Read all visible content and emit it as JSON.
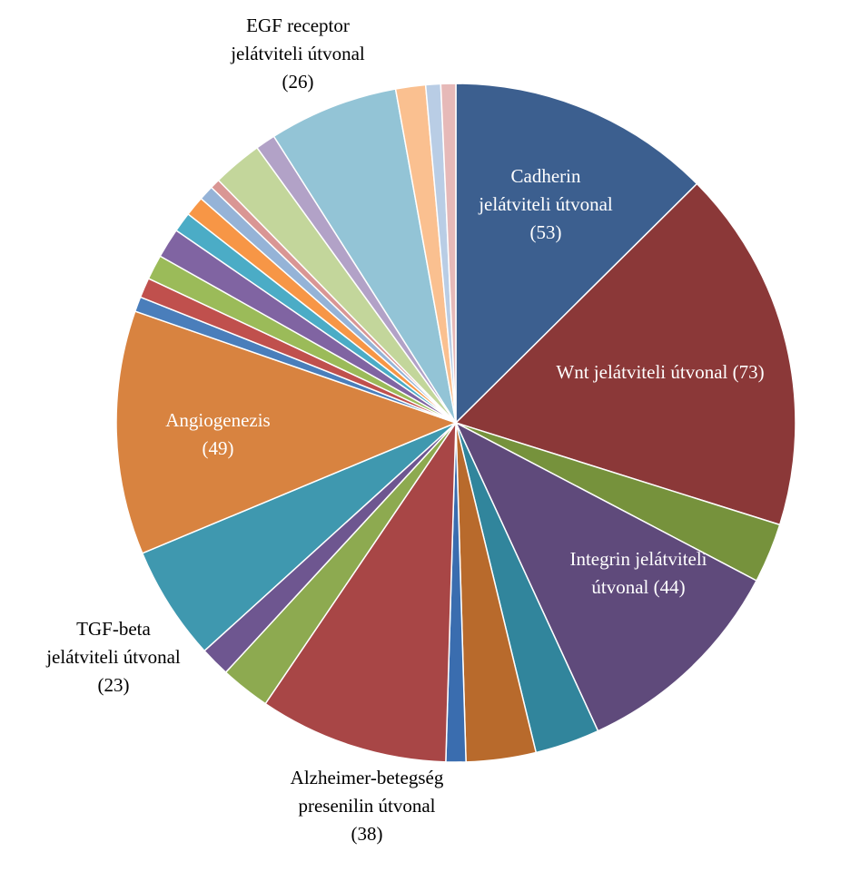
{
  "chart_data": {
    "type": "pie",
    "title": "",
    "start_angle_deg": 0,
    "direction": "clockwise",
    "slices": [
      {
        "label": "Cadherin jelátviteli útvonal (53)",
        "lines": [
          "Cadherin",
          "jelátviteli útvonal",
          "(53)"
        ],
        "value": 53,
        "color": "#3C5F8F",
        "show_label": true,
        "label_color": "#ffffff",
        "label_pos": "inside"
      },
      {
        "label": "Wnt jelátviteli útvonal (73)",
        "lines": [
          "Wnt jelátviteli útvonal (73)"
        ],
        "value": 73,
        "color": "#8B3838",
        "show_label": true,
        "label_color": "#ffffff",
        "label_pos": "inside"
      },
      {
        "label": "",
        "value": 12,
        "color": "#76923C",
        "show_label": false
      },
      {
        "label": "Integrin jelátviteli útvonal (44)",
        "lines": [
          "Integrin jelátviteli",
          "útvonal (44)"
        ],
        "value": 44,
        "color": "#5F4A7B",
        "show_label": true,
        "label_color": "#ffffff",
        "label_pos": "inside"
      },
      {
        "label": "",
        "value": 13,
        "color": "#31859C",
        "show_label": false
      },
      {
        "label": "",
        "value": 14,
        "color": "#B86A2C",
        "show_label": false
      },
      {
        "label": "",
        "value": 4,
        "color": "#3A6DAF",
        "show_label": false
      },
      {
        "label": "Alzheimer-betegség presenilin útvonal (38)",
        "lines": [
          "Alzheimer-betegség",
          "presenilin útvonal",
          "(38)"
        ],
        "value": 38,
        "color": "#A84646",
        "show_label": true,
        "label_color": "#000000",
        "label_pos": "outside"
      },
      {
        "label": "",
        "value": 10,
        "color": "#8DAA50",
        "show_label": false
      },
      {
        "label": "",
        "value": 6,
        "color": "#6E5690",
        "show_label": false
      },
      {
        "label": "TGF-beta jelátviteli útvonal (23)",
        "lines": [
          "TGF-beta",
          "jelátviteli útvonal",
          "(23)"
        ],
        "value": 23,
        "color": "#3F98AF",
        "show_label": true,
        "label_color": "#000000",
        "label_pos": "outside"
      },
      {
        "label": "Angiogenezis (49)",
        "lines": [
          "Angiogenezis",
          "(49)"
        ],
        "value": 49,
        "color": "#D88340",
        "show_label": true,
        "label_color": "#ffffff",
        "label_pos": "inside"
      },
      {
        "label": "",
        "value": 3,
        "color": "#4A7EBB",
        "show_label": false
      },
      {
        "label": "",
        "value": 4,
        "color": "#C0504D",
        "show_label": false
      },
      {
        "label": "",
        "value": 5,
        "color": "#9BBB59",
        "show_label": false
      },
      {
        "label": "",
        "value": 6,
        "color": "#8064A2",
        "show_label": false
      },
      {
        "label": "",
        "value": 4,
        "color": "#4BACC6",
        "show_label": false
      },
      {
        "label": "",
        "value": 4,
        "color": "#F79646",
        "show_label": false
      },
      {
        "label": "",
        "value": 3,
        "color": "#95B3D7",
        "show_label": false
      },
      {
        "label": "",
        "value": 2,
        "color": "#D99694",
        "show_label": false
      },
      {
        "label": "",
        "value": 10,
        "color": "#C3D69B",
        "show_label": false
      },
      {
        "label": "",
        "value": 4,
        "color": "#B2A2C7",
        "show_label": false
      },
      {
        "label": "EGF receptor jelátviteli útvonal (26)",
        "lines": [
          "EGF receptor",
          "jelátviteli útvonal",
          "(26)"
        ],
        "value": 26,
        "color": "#93C4D6",
        "show_label": true,
        "label_color": "#000000",
        "label_pos": "outside"
      },
      {
        "label": "",
        "value": 6,
        "color": "#FAC090",
        "show_label": false
      },
      {
        "label": "",
        "value": 3,
        "color": "#B9CDE5",
        "show_label": false
      },
      {
        "label": "",
        "value": 3,
        "color": "#E6B9B8",
        "show_label": false
      }
    ]
  }
}
